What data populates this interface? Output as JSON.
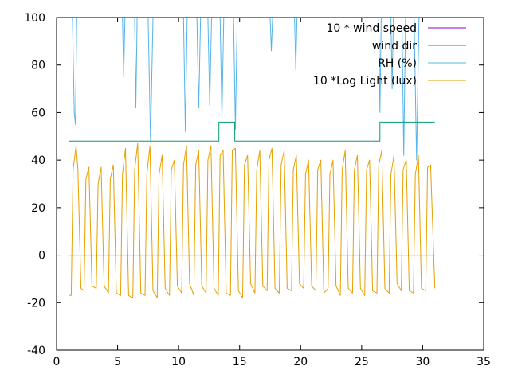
{
  "chart_data": {
    "type": "line",
    "xlim": [
      0,
      35
    ],
    "ylim": [
      -40,
      100
    ],
    "x_ticks": [
      0,
      5,
      10,
      15,
      20,
      25,
      30,
      35
    ],
    "y_ticks": [
      -40,
      -20,
      0,
      20,
      40,
      60,
      80,
      100
    ],
    "grid": false,
    "legend_position": "top-right",
    "series": [
      {
        "name": "10 * wind speed",
        "color": "#9400d3",
        "x": [
          1.0,
          31.0
        ],
        "y": [
          0,
          0
        ]
      },
      {
        "name": "wind dir",
        "color": "#009e73",
        "x": [
          1.0,
          13.3,
          13.3,
          14.6,
          14.6,
          26.5,
          26.5,
          31.0
        ],
        "y": [
          48,
          48,
          56,
          56,
          48,
          48,
          56,
          56
        ]
      },
      {
        "name": "RH (%)",
        "color": "#56b4e9",
        "x": [
          1.0,
          1.3,
          1.45,
          1.55,
          1.65,
          1.8,
          5.4,
          5.5,
          5.6,
          6.4,
          6.5,
          6.6,
          7.5,
          7.7,
          7.9,
          10.4,
          10.55,
          10.7,
          11.5,
          11.65,
          11.8,
          12.4,
          12.55,
          12.7,
          13.4,
          13.55,
          13.7,
          14.5,
          14.65,
          14.8,
          17.5,
          17.6,
          17.7,
          19.5,
          19.6,
          19.7,
          26.4,
          26.5,
          26.6,
          27.4,
          27.5,
          27.6,
          28.3,
          28.45,
          28.6,
          29.3,
          29.5,
          29.7,
          31.0
        ],
        "y": [
          100,
          100,
          60,
          55,
          100,
          100,
          100,
          75,
          100,
          100,
          62,
          100,
          100,
          48,
          100,
          100,
          52,
          100,
          100,
          62,
          100,
          100,
          63,
          100,
          100,
          58,
          100,
          100,
          53,
          100,
          100,
          86,
          100,
          100,
          78,
          100,
          100,
          60,
          100,
          100,
          70,
          100,
          100,
          42,
          100,
          100,
          40,
          100,
          100
        ]
      },
      {
        "name": "10 *Log Light (lux)",
        "color": "#e69f00",
        "x": [
          1.0,
          1.2,
          1.35,
          1.6,
          1.75,
          2.0,
          2.25,
          2.4,
          2.65,
          2.9,
          3.25,
          3.4,
          3.65,
          3.9,
          4.25,
          4.4,
          4.65,
          4.9,
          5.25,
          5.4,
          5.65,
          5.9,
          6.25,
          6.4,
          6.65,
          6.9,
          7.25,
          7.4,
          7.65,
          7.9,
          8.25,
          8.4,
          8.65,
          8.9,
          9.25,
          9.4,
          9.65,
          9.9,
          10.25,
          10.4,
          10.65,
          10.9,
          11.25,
          11.4,
          11.65,
          11.9,
          12.25,
          12.4,
          12.65,
          12.9,
          13.25,
          13.4,
          13.65,
          13.9,
          14.25,
          14.4,
          14.65,
          14.9,
          15.25,
          15.4,
          15.65,
          15.9,
          16.25,
          16.4,
          16.65,
          16.9,
          17.25,
          17.4,
          17.65,
          17.9,
          18.25,
          18.4,
          18.65,
          18.9,
          19.25,
          19.4,
          19.65,
          19.9,
          20.25,
          20.4,
          20.65,
          20.9,
          21.25,
          21.4,
          21.65,
          21.9,
          22.25,
          22.4,
          22.65,
          22.9,
          23.25,
          23.4,
          23.65,
          23.9,
          24.25,
          24.4,
          24.65,
          24.9,
          25.25,
          25.4,
          25.65,
          25.9,
          26.25,
          26.4,
          26.65,
          26.9,
          27.25,
          27.4,
          27.65,
          27.9,
          28.25,
          28.4,
          28.65,
          28.9,
          29.25,
          29.4,
          29.65,
          29.9,
          30.25,
          30.4,
          30.65,
          31.0
        ],
        "y": [
          -17,
          -17,
          36,
          46,
          36,
          -14,
          -15,
          32,
          37,
          -13,
          -14,
          30,
          37,
          -13,
          -16,
          32,
          38,
          -16,
          -17,
          34,
          45,
          -17,
          -18,
          36,
          47,
          -16,
          -17,
          34,
          46,
          -15,
          -18,
          34,
          42,
          -14,
          -17,
          36,
          40,
          -13,
          -16,
          38,
          46,
          -12,
          -17,
          38,
          44,
          -13,
          -16,
          40,
          46,
          -14,
          -17,
          42,
          44,
          -16,
          -17,
          44,
          45,
          -15,
          -18,
          38,
          42,
          -12,
          -16,
          36,
          44,
          -13,
          -15,
          40,
          45,
          -14,
          -16,
          38,
          44,
          -14,
          -15,
          36,
          42,
          -12,
          -14,
          34,
          40,
          -13,
          -15,
          36,
          40,
          -16,
          -14,
          34,
          40,
          -13,
          -17,
          36,
          44,
          -14,
          -16,
          36,
          42,
          -14,
          -17,
          36,
          40,
          -15,
          -16,
          38,
          44,
          -14,
          -16,
          34,
          42,
          -12,
          -15,
          36,
          40,
          -15,
          -16,
          34,
          42,
          -14,
          -15,
          37,
          38,
          -14
        ]
      }
    ]
  }
}
